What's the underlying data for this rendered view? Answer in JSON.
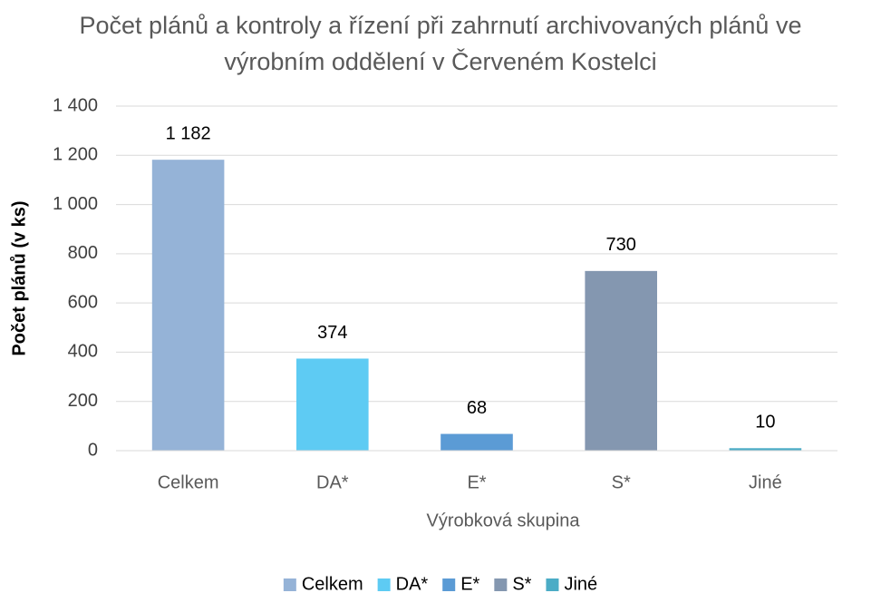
{
  "chart_data": {
    "type": "bar",
    "title": "Počet plánů a kontroly a řízení při zahrnutí archivovaných plánů ve výrobním oddělení v Červeném Kostelci",
    "x_label": "Výrobková skupina",
    "y_label": "Počet plánů (v ks)",
    "categories": [
      "Celkem",
      "DA*",
      "E*",
      "S*",
      "Jiné"
    ],
    "values": [
      1182,
      374,
      68,
      730,
      10
    ],
    "value_labels": [
      "1 182",
      "374",
      "68",
      "730",
      "10"
    ],
    "colors": [
      "#95b3d7",
      "#5ecbf3",
      "#5b9bd5",
      "#8497b0",
      "#4bacc6"
    ],
    "ylim": [
      0,
      1400
    ],
    "yticks": [
      0,
      200,
      400,
      600,
      800,
      {
        "value": 1000,
        "label": "1 000"
      },
      {
        "value": 1200,
        "label": "1 200"
      },
      {
        "value": 1400,
        "label": "1 400"
      }
    ],
    "grid": true,
    "legend": "bottom"
  }
}
